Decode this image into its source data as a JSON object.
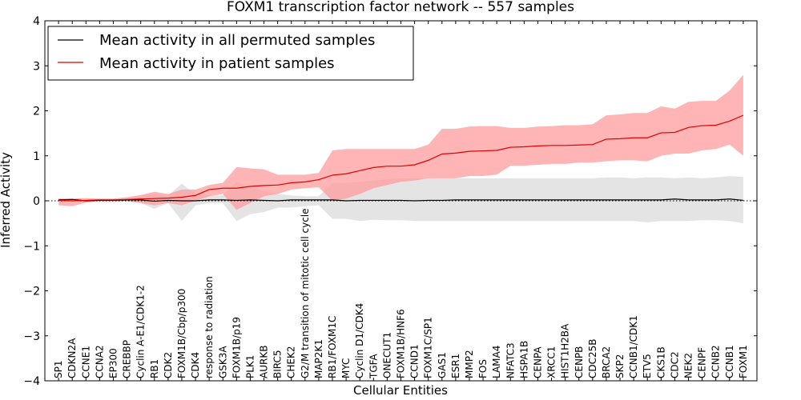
{
  "chart_data": {
    "type": "line",
    "title": "FOXM1 transcription factor network -- 557 samples",
    "xlabel": "Cellular Entities",
    "ylabel": "Inferred Activity",
    "ylim": [
      -4,
      4
    ],
    "yticks": [
      -4,
      -3,
      -2,
      -1,
      0,
      1,
      2,
      3,
      4
    ],
    "ytick_labels": [
      "−4",
      "−3",
      "−2",
      "−1",
      "0",
      "1",
      "2",
      "3",
      "4"
    ],
    "legend_position": "top-left",
    "categories": [
      "SP1",
      "CDKN2A",
      "CCNE1",
      "CCNA2",
      "EP300",
      "CREBBP",
      "Cyclin A-E1/CDK1-2",
      "RB1",
      "CDK2",
      "FOXM1B/Cbp/p300",
      "CDK4",
      "response to radiation",
      "GSK3A",
      "FOXM1B/p19",
      "PLK1",
      "AURKB",
      "BIRC5",
      "CHEK2",
      "G2/M transition of mitotic cell cycle",
      "MAP2K1",
      "RB1/FOXM1C",
      "MYC",
      "Cyclin D1/CDK4",
      "TGFA",
      "ONECUT1",
      "FOXM1B/HNF6",
      "CCND1",
      "FOXM1C/SP1",
      "GAS1",
      "ESR1",
      "MMP2",
      "FOS",
      "LAMA4",
      "NFATC3",
      "HSPA1B",
      "CENPA",
      "XRCC1",
      "HIST1H2BA",
      "CENPB",
      "CDC25B",
      "BRCA2",
      "SKP2",
      "CCNB1/CDK1",
      "ETV5",
      "CKS1B",
      "CDC2",
      "NEK2",
      "CENPF",
      "CCNB2",
      "CCNB1",
      "FOXM1"
    ],
    "series": [
      {
        "name": "Mean activity in all permuted samples",
        "color": "#000000",
        "band_color": "#b8b8b8",
        "values": [
          0.02,
          0.03,
          0.0,
          0.01,
          0.01,
          0.02,
          0.02,
          -0.01,
          0.01,
          0.0,
          0.0,
          0.02,
          0.02,
          0.01,
          0.02,
          0.01,
          0.0,
          0.02,
          0.02,
          0.02,
          0.02,
          0.0,
          0.01,
          0.01,
          0.01,
          0.01,
          0.0,
          0.01,
          0.01,
          0.02,
          0.02,
          0.02,
          0.02,
          0.02,
          0.02,
          0.02,
          0.02,
          0.02,
          0.02,
          0.02,
          0.02,
          0.02,
          0.02,
          0.02,
          0.02,
          0.04,
          0.02,
          0.02,
          0.02,
          0.04,
          0.01
        ],
        "lower": [
          -0.03,
          -0.03,
          -0.03,
          -0.03,
          -0.03,
          -0.02,
          -0.05,
          -0.18,
          -0.05,
          -0.45,
          -0.1,
          -0.05,
          -0.05,
          -0.45,
          -0.3,
          -0.25,
          -0.15,
          -0.15,
          -0.12,
          -0.1,
          -0.4,
          -0.4,
          -0.45,
          -0.42,
          -0.43,
          -0.43,
          -0.45,
          -0.45,
          -0.45,
          -0.45,
          -0.45,
          -0.45,
          -0.45,
          -0.45,
          -0.45,
          -0.45,
          -0.45,
          -0.45,
          -0.45,
          -0.45,
          -0.45,
          -0.45,
          -0.45,
          -0.48,
          -0.45,
          -0.45,
          -0.45,
          -0.43,
          -0.43,
          -0.45,
          -0.5
        ],
        "upper": [
          0.05,
          0.05,
          0.04,
          0.04,
          0.04,
          0.05,
          0.1,
          0.15,
          0.12,
          0.38,
          0.15,
          0.12,
          0.12,
          0.42,
          0.3,
          0.22,
          0.15,
          0.12,
          0.1,
          0.1,
          0.4,
          0.4,
          0.42,
          0.45,
          0.48,
          0.5,
          0.5,
          0.5,
          0.5,
          0.5,
          0.5,
          0.5,
          0.5,
          0.5,
          0.5,
          0.5,
          0.5,
          0.5,
          0.5,
          0.5,
          0.52,
          0.52,
          0.5,
          0.52,
          0.52,
          0.5,
          0.52,
          0.5,
          0.52,
          0.55,
          0.53
        ]
      },
      {
        "name": "Mean activity in patient samples",
        "color": "#e00000",
        "band_color": "#ff9999",
        "values": [
          0.01,
          0.0,
          0.01,
          0.02,
          0.02,
          0.03,
          0.04,
          0.05,
          0.06,
          0.08,
          0.12,
          0.25,
          0.28,
          0.28,
          0.32,
          0.34,
          0.35,
          0.4,
          0.42,
          0.47,
          0.57,
          0.6,
          0.67,
          0.74,
          0.77,
          0.77,
          0.8,
          0.9,
          1.04,
          1.06,
          1.1,
          1.11,
          1.12,
          1.19,
          1.2,
          1.22,
          1.23,
          1.23,
          1.24,
          1.25,
          1.37,
          1.38,
          1.4,
          1.4,
          1.51,
          1.52,
          1.63,
          1.67,
          1.68,
          1.77,
          1.9
        ],
        "lower": [
          -0.1,
          -0.12,
          -0.04,
          0.0,
          0.0,
          0.0,
          -0.05,
          -0.1,
          -0.05,
          -0.1,
          0.0,
          0.1,
          0.15,
          -0.2,
          -0.05,
          0.1,
          0.15,
          0.25,
          0.28,
          0.3,
          0.0,
          0.05,
          0.15,
          0.28,
          0.35,
          0.42,
          0.45,
          0.5,
          0.5,
          0.5,
          0.55,
          0.55,
          0.58,
          0.78,
          0.78,
          0.8,
          0.82,
          0.82,
          0.85,
          0.85,
          0.88,
          0.9,
          0.9,
          0.88,
          1.0,
          1.05,
          1.05,
          1.12,
          1.15,
          1.25,
          1.0
        ],
        "upper": [
          0.05,
          0.05,
          0.06,
          0.05,
          0.05,
          0.08,
          0.13,
          0.2,
          0.15,
          0.25,
          0.25,
          0.35,
          0.4,
          0.75,
          0.72,
          0.7,
          0.58,
          0.58,
          0.58,
          0.62,
          1.12,
          1.15,
          1.15,
          1.15,
          1.15,
          1.15,
          1.15,
          1.25,
          1.6,
          1.6,
          1.65,
          1.66,
          1.66,
          1.62,
          1.62,
          1.65,
          1.66,
          1.68,
          1.68,
          1.7,
          1.9,
          1.92,
          1.95,
          1.95,
          2.1,
          2.05,
          2.2,
          2.22,
          2.22,
          2.45,
          2.8
        ]
      }
    ]
  }
}
